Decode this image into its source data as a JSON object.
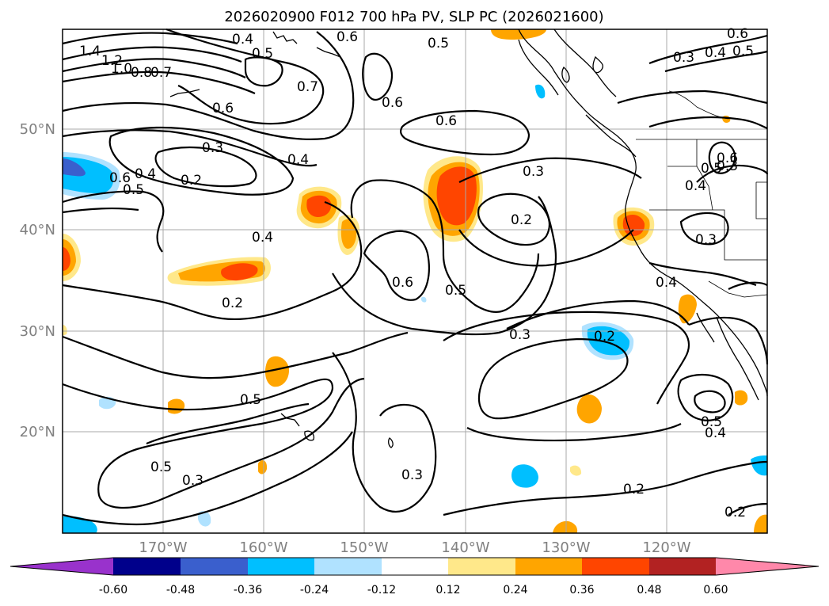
{
  "title": "2026020900 F012 700 hPa PV, SLP PC (2026021600)",
  "lat_labels": [
    "50°N",
    "40°N",
    "30°N",
    "20°N"
  ],
  "lon_labels": [
    "170°W",
    "160°W",
    "150°W",
    "140°W",
    "130°W",
    "120°W"
  ],
  "colorbar": {
    "ticks": [
      "-0.60",
      "-0.48",
      "-0.36",
      "-0.24",
      "-0.12",
      "0.12",
      "0.24",
      "0.36",
      "0.48",
      "0.60"
    ],
    "colors": [
      "#9932cc",
      "#00008b",
      "#3a5fcd",
      "#00bfff",
      "#b0e2ff",
      "#ffffff",
      "#ffe88a",
      "#ffa500",
      "#ff4500",
      "#b22222",
      "#ff88aa"
    ]
  },
  "contour_labels": [
    "1.4",
    "1.2",
    "1.0",
    "0.8",
    "0.7",
    "0.5",
    "0.6",
    "0.4",
    "0.7",
    "0.6",
    "0.5",
    "0.3",
    "0.4",
    "0.2",
    "0.6",
    "0.5",
    "0.4",
    "0.2",
    "0.6",
    "0.6",
    "0.3",
    "0.2",
    "0.4",
    "0.6",
    "0.5",
    "0.3",
    "0.2",
    "0.3",
    "0.3",
    "0.4",
    "0.5",
    "0.6",
    "0.5",
    "0.4",
    "0.5",
    "0.4",
    "0.3",
    "0.5",
    "0.3",
    "0.2",
    "0.2",
    "0.4",
    "0.3",
    "0.5",
    "0.6"
  ]
}
